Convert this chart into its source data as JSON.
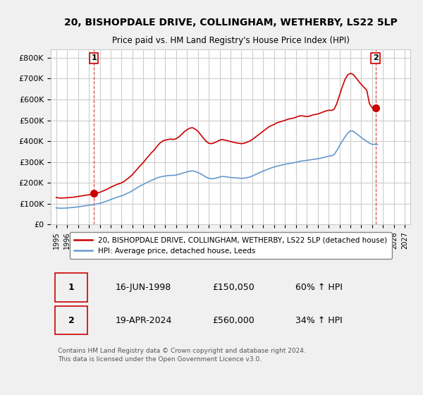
{
  "title": "20, BISHOPDALE DRIVE, COLLINGHAM, WETHERBY, LS22 5LP",
  "subtitle": "Price paid vs. HM Land Registry's House Price Index (HPI)",
  "bg_color": "#f0f0f0",
  "plot_bg_color": "#ffffff",
  "grid_color": "#cccccc",
  "red_color": "#cc0000",
  "blue_color": "#6699cc",
  "red_dashed_color": "#cc0000",
  "ylim": [
    0,
    840000
  ],
  "yticks": [
    0,
    100000,
    200000,
    300000,
    400000,
    500000,
    600000,
    700000,
    800000
  ],
  "ytick_labels": [
    "£0",
    "£100K",
    "£200K",
    "£300K",
    "£400K",
    "£500K",
    "£600K",
    "£700K",
    "£800K"
  ],
  "xlim_start": 1994.5,
  "xlim_end": 2027.5,
  "xticks": [
    1995,
    1996,
    1997,
    1998,
    1999,
    2000,
    2001,
    2002,
    2003,
    2004,
    2005,
    2006,
    2007,
    2008,
    2009,
    2010,
    2011,
    2012,
    2013,
    2014,
    2015,
    2016,
    2017,
    2018,
    2019,
    2020,
    2021,
    2022,
    2023,
    2024,
    2025,
    2026,
    2027
  ],
  "transaction1": {
    "date_x": 1998.46,
    "price": 150050,
    "label": "1"
  },
  "transaction2": {
    "date_x": 2024.3,
    "price": 560000,
    "label": "2"
  },
  "legend_red": "20, BISHOPDALE DRIVE, COLLINGHAM, WETHERBY, LS22 5LP (detached house)",
  "legend_blue": "HPI: Average price, detached house, Leeds",
  "table_rows": [
    {
      "num": "1",
      "date": "16-JUN-1998",
      "price": "£150,050",
      "hpi": "60% ↑ HPI"
    },
    {
      "num": "2",
      "date": "19-APR-2024",
      "price": "£560,000",
      "hpi": "34% ↑ HPI"
    }
  ],
  "footer": "Contains HM Land Registry data © Crown copyright and database right 2024.\nThis data is licensed under the Open Government Licence v3.0.",
  "red_line_data": {
    "x": [
      1995.0,
      1995.25,
      1995.5,
      1995.75,
      1996.0,
      1996.25,
      1996.5,
      1996.75,
      1997.0,
      1997.25,
      1997.5,
      1997.75,
      1998.0,
      1998.25,
      1998.5,
      1998.75,
      1999.0,
      1999.25,
      1999.5,
      1999.75,
      2000.0,
      2000.25,
      2000.5,
      2000.75,
      2001.0,
      2001.25,
      2001.5,
      2001.75,
      2002.0,
      2002.25,
      2002.5,
      2002.75,
      2003.0,
      2003.25,
      2003.5,
      2003.75,
      2004.0,
      2004.25,
      2004.5,
      2004.75,
      2005.0,
      2005.25,
      2005.5,
      2005.75,
      2006.0,
      2006.25,
      2006.5,
      2006.75,
      2007.0,
      2007.25,
      2007.5,
      2007.75,
      2008.0,
      2008.25,
      2008.5,
      2008.75,
      2009.0,
      2009.25,
      2009.5,
      2009.75,
      2010.0,
      2010.25,
      2010.5,
      2010.75,
      2011.0,
      2011.25,
      2011.5,
      2011.75,
      2012.0,
      2012.25,
      2012.5,
      2012.75,
      2013.0,
      2013.25,
      2013.5,
      2013.75,
      2014.0,
      2014.25,
      2014.5,
      2014.75,
      2015.0,
      2015.25,
      2015.5,
      2015.75,
      2016.0,
      2016.25,
      2016.5,
      2016.75,
      2017.0,
      2017.25,
      2017.5,
      2017.75,
      2018.0,
      2018.25,
      2018.5,
      2018.75,
      2019.0,
      2019.25,
      2019.5,
      2019.75,
      2020.0,
      2020.25,
      2020.5,
      2020.75,
      2021.0,
      2021.25,
      2021.5,
      2021.75,
      2022.0,
      2022.25,
      2022.5,
      2022.75,
      2023.0,
      2023.25,
      2023.5,
      2023.75,
      2024.0,
      2024.25,
      2024.5
    ],
    "y": [
      130000,
      128000,
      127000,
      128000,
      129000,
      130000,
      131000,
      133000,
      135000,
      137000,
      139000,
      141000,
      143000,
      145000,
      150050,
      152000,
      155000,
      160000,
      166000,
      172000,
      179000,
      185000,
      191000,
      196000,
      200000,
      208000,
      218000,
      228000,
      240000,
      255000,
      270000,
      285000,
      298000,
      315000,
      330000,
      345000,
      358000,
      375000,
      390000,
      400000,
      405000,
      408000,
      410000,
      408000,
      412000,
      420000,
      432000,
      445000,
      455000,
      462000,
      465000,
      458000,
      448000,
      432000,
      415000,
      400000,
      390000,
      388000,
      392000,
      398000,
      405000,
      408000,
      405000,
      402000,
      398000,
      395000,
      392000,
      390000,
      388000,
      390000,
      395000,
      400000,
      408000,
      418000,
      428000,
      438000,
      448000,
      458000,
      468000,
      475000,
      480000,
      488000,
      492000,
      496000,
      500000,
      505000,
      508000,
      510000,
      515000,
      520000,
      522000,
      520000,
      518000,
      520000,
      525000,
      528000,
      530000,
      535000,
      540000,
      545000,
      548000,
      548000,
      552000,
      580000,
      620000,
      660000,
      695000,
      718000,
      725000,
      720000,
      705000,
      688000,
      672000,
      658000,
      645000,
      580000,
      560000,
      560000,
      560000
    ]
  },
  "blue_line_data": {
    "x": [
      1995.0,
      1995.25,
      1995.5,
      1995.75,
      1996.0,
      1996.25,
      1996.5,
      1996.75,
      1997.0,
      1997.25,
      1997.5,
      1997.75,
      1998.0,
      1998.25,
      1998.5,
      1998.75,
      1999.0,
      1999.25,
      1999.5,
      1999.75,
      2000.0,
      2000.25,
      2000.5,
      2000.75,
      2001.0,
      2001.25,
      2001.5,
      2001.75,
      2002.0,
      2002.25,
      2002.5,
      2002.75,
      2003.0,
      2003.25,
      2003.5,
      2003.75,
      2004.0,
      2004.25,
      2004.5,
      2004.75,
      2005.0,
      2005.25,
      2005.5,
      2005.75,
      2006.0,
      2006.25,
      2006.5,
      2006.75,
      2007.0,
      2007.25,
      2007.5,
      2007.75,
      2008.0,
      2008.25,
      2008.5,
      2008.75,
      2009.0,
      2009.25,
      2009.5,
      2009.75,
      2010.0,
      2010.25,
      2010.5,
      2010.75,
      2011.0,
      2011.25,
      2011.5,
      2011.75,
      2012.0,
      2012.25,
      2012.5,
      2012.75,
      2013.0,
      2013.25,
      2013.5,
      2013.75,
      2014.0,
      2014.25,
      2014.5,
      2014.75,
      2015.0,
      2015.25,
      2015.5,
      2015.75,
      2016.0,
      2016.25,
      2016.5,
      2016.75,
      2017.0,
      2017.25,
      2017.5,
      2017.75,
      2018.0,
      2018.25,
      2018.5,
      2018.75,
      2019.0,
      2019.25,
      2019.5,
      2019.75,
      2020.0,
      2020.25,
      2020.5,
      2020.75,
      2021.0,
      2021.25,
      2021.5,
      2021.75,
      2022.0,
      2022.25,
      2022.5,
      2022.75,
      2023.0,
      2023.25,
      2023.5,
      2023.75,
      2024.0,
      2024.25,
      2024.5
    ],
    "y": [
      80000,
      79000,
      78500,
      79000,
      80000,
      81000,
      82000,
      83500,
      85000,
      87000,
      89000,
      91000,
      93000,
      95000,
      97000,
      99000,
      102000,
      106000,
      110000,
      115000,
      120000,
      125000,
      130000,
      134000,
      138000,
      143000,
      149000,
      155000,
      163000,
      171000,
      179000,
      187000,
      193000,
      200000,
      206000,
      212000,
      218000,
      224000,
      228000,
      231000,
      233000,
      235000,
      236000,
      236000,
      238000,
      241000,
      245000,
      249000,
      253000,
      256000,
      258000,
      255000,
      250000,
      244000,
      236000,
      228000,
      222000,
      220000,
      221000,
      224000,
      228000,
      231000,
      230000,
      228000,
      226000,
      225000,
      224000,
      223000,
      222000,
      223000,
      225000,
      228000,
      233000,
      239000,
      245000,
      251000,
      257000,
      262000,
      267000,
      272000,
      276000,
      280000,
      283000,
      286000,
      289000,
      292000,
      294000,
      296000,
      299000,
      302000,
      305000,
      306000,
      308000,
      310000,
      312000,
      314000,
      316000,
      318000,
      321000,
      325000,
      328000,
      330000,
      335000,
      355000,
      378000,
      400000,
      420000,
      438000,
      450000,
      448000,
      438000,
      428000,
      418000,
      408000,
      400000,
      390000,
      385000,
      385000,
      385000
    ]
  }
}
